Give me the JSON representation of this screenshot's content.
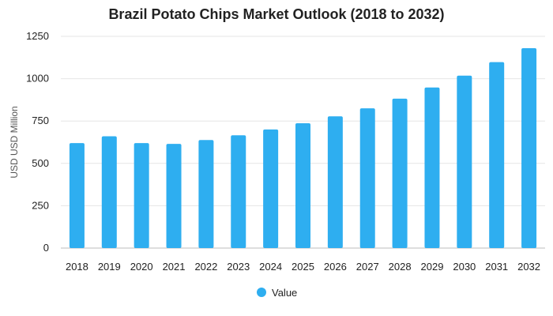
{
  "chart_data": {
    "type": "bar",
    "title": "Brazil Potato Chips Market Outlook (2018 to 2032)",
    "xlabel": "",
    "ylabel": "USD USD Million",
    "ylim": [
      0,
      1250
    ],
    "yticks": [
      0,
      250,
      500,
      750,
      1000,
      1250
    ],
    "grid": true,
    "legend_position": "bottom",
    "categories": [
      "2018",
      "2019",
      "2020",
      "2021",
      "2022",
      "2023",
      "2024",
      "2025",
      "2026",
      "2027",
      "2028",
      "2029",
      "2030",
      "2031",
      "2032"
    ],
    "series": [
      {
        "name": "Value",
        "color": "#2eaef0",
        "values": [
          620,
          660,
          620,
          615,
          638,
          666,
          700,
          737,
          778,
          825,
          882,
          948,
          1018,
          1098,
          1180
        ]
      }
    ]
  }
}
